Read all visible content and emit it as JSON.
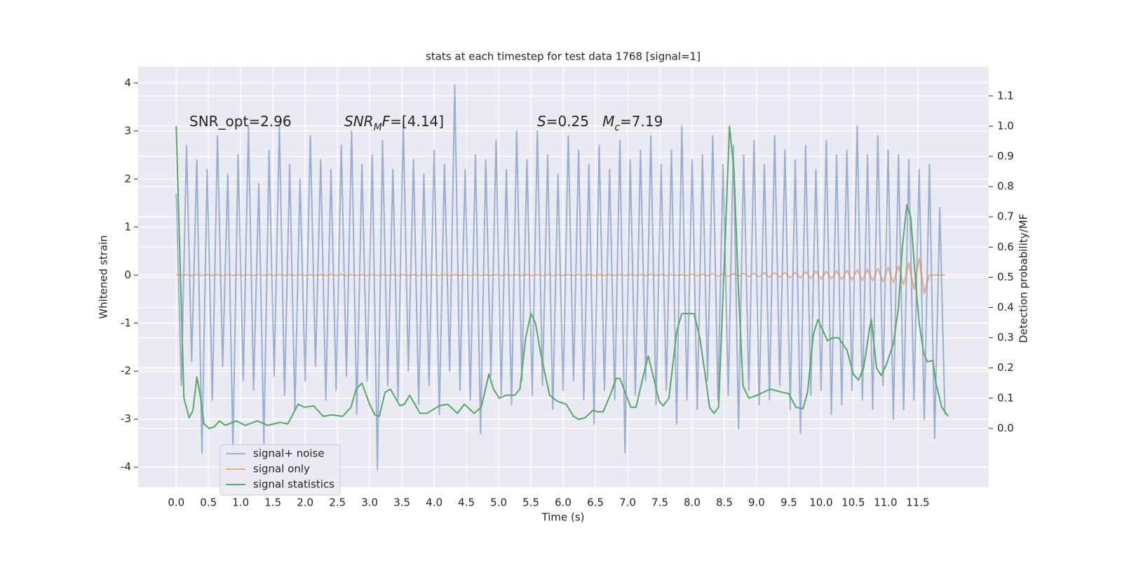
{
  "chart_data": {
    "type": "line",
    "title": "stats at each timestep for test data 1768 [signal=1]",
    "x_label": "Time (s)",
    "y_label": "Whitened strain",
    "y2_label": "Detection probability/MF",
    "background": "#eaeaf2",
    "grid": true,
    "grid_color": "#ffffff",
    "legend": "lower left",
    "xlim": [
      -0.59,
      12.6
    ],
    "ylim": [
      -4.42,
      4.34
    ],
    "y2lim": [
      -0.195,
      1.197
    ],
    "xticks": [
      {
        "value": 0,
        "label": "0.0"
      },
      0.5,
      {
        "value": 1,
        "label": "1.0"
      },
      1.5,
      {
        "value": 2,
        "label": "2.0"
      },
      2.5,
      {
        "value": 3,
        "label": "3.0"
      },
      3.5,
      {
        "value": 4,
        "label": "4.0"
      },
      4.5,
      {
        "value": 5,
        "label": "5.0"
      },
      5.5,
      {
        "value": 6,
        "label": "6.0"
      },
      6.5,
      {
        "value": 7,
        "label": "7.0"
      },
      7.5,
      {
        "value": 8,
        "label": "8.0"
      },
      8.5,
      {
        "value": 9,
        "label": "9.0"
      },
      9.5,
      {
        "value": 10,
        "label": "10.0"
      },
      10.5,
      {
        "value": 11,
        "label": "11.0"
      },
      11.5
    ],
    "yticks": [
      -4,
      -3,
      -2,
      -1,
      0,
      1,
      2,
      3,
      4
    ],
    "y2ticks": [
      {
        "value": 0,
        "label": "0.0"
      },
      0.1,
      0.2,
      0.3,
      0.4,
      0.5,
      0.6,
      0.7,
      0.8,
      0.9,
      {
        "value": 1,
        "label": "1.0"
      },
      1.1
    ],
    "annotations": [
      [
        {
          "text": "SNR_opt=2.96"
        }
      ],
      [
        {
          "text": "SNR",
          "italic": true
        },
        {
          "text": "M",
          "italic": true,
          "sub": true
        },
        {
          "text": "F",
          "italic": true
        },
        {
          "text": "=[4.14]"
        }
      ],
      [
        {
          "text": "S",
          "italic": true
        },
        {
          "text": "=0.25   "
        },
        {
          "text": "M",
          "italic": true
        },
        {
          "text": "c",
          "italic": true,
          "sub": true
        },
        {
          "text": "=7.19"
        }
      ]
    ],
    "series": [
      {
        "name": "signal+ noise",
        "color": "#4c72b0",
        "opacity": 0.5,
        "x": [
          0,
          0.08,
          0.16,
          0.24,
          0.32,
          0.4,
          0.48,
          0.56,
          0.64,
          0.72,
          0.8,
          0.88,
          0.96,
          1.04,
          1.12,
          1.2,
          1.28,
          1.36,
          1.44,
          1.52,
          1.6,
          1.68,
          1.76,
          1.84,
          1.92,
          2,
          2.08,
          2.16,
          2.24,
          2.32,
          2.4,
          2.48,
          2.56,
          2.64,
          2.72,
          2.8,
          2.88,
          2.96,
          3.04,
          3.12,
          3.2,
          3.28,
          3.36,
          3.44,
          3.52,
          3.6,
          3.68,
          3.76,
          3.84,
          3.92,
          4,
          4.08,
          4.16,
          4.24,
          4.32,
          4.4,
          4.48,
          4.56,
          4.64,
          4.72,
          4.8,
          4.88,
          4.96,
          5.04,
          5.12,
          5.2,
          5.28,
          5.36,
          5.44,
          5.52,
          5.6,
          5.68,
          5.76,
          5.84,
          5.92,
          6,
          6.08,
          6.16,
          6.24,
          6.32,
          6.4,
          6.48,
          6.56,
          6.64,
          6.72,
          6.8,
          6.88,
          6.96,
          7.04,
          7.12,
          7.2,
          7.28,
          7.36,
          7.44,
          7.52,
          7.6,
          7.68,
          7.76,
          7.84,
          7.92,
          8,
          8.08,
          8.16,
          8.24,
          8.32,
          8.4,
          8.48,
          8.56,
          8.64,
          8.72,
          8.8,
          8.88,
          8.96,
          9.04,
          9.12,
          9.2,
          9.28,
          9.36,
          9.44,
          9.52,
          9.6,
          9.68,
          9.76,
          9.84,
          9.92,
          10,
          10.08,
          10.16,
          10.24,
          10.32,
          10.4,
          10.48,
          10.56,
          10.64,
          10.72,
          10.8,
          10.88,
          10.96,
          11.04,
          11.12,
          11.2,
          11.28,
          11.36,
          11.44,
          11.52,
          11.6,
          11.68,
          11.76,
          11.84,
          11.92
        ],
        "values": [
          1.7,
          -2.3,
          2.7,
          -1.8,
          2.4,
          -3.7,
          2.2,
          -2.6,
          2.9,
          -1.9,
          2.1,
          -3.6,
          2.5,
          -2.2,
          3.1,
          -2.4,
          1.9,
          -3.5,
          2.6,
          -2.1,
          3.1,
          -2.5,
          2.3,
          -2.8,
          2.0,
          -2.2,
          2.9,
          -1.9,
          2.4,
          -2.6,
          2.2,
          -2.4,
          2.7,
          -2.1,
          3.0,
          -2.9,
          2.3,
          -2.2,
          2.5,
          -4.05,
          2.8,
          -2.3,
          2.2,
          -2.6,
          3.2,
          -2.0,
          2.4,
          -2.7,
          2.1,
          -2.3,
          2.6,
          -2.9,
          2.3,
          -2.0,
          3.95,
          -2.4,
          2.2,
          -2.6,
          2.5,
          -3.3,
          2.4,
          -2.1,
          2.8,
          -2.5,
          2.2,
          -2.7,
          3.0,
          -2.2,
          2.4,
          -2.5,
          3.0,
          -2.3,
          2.5,
          -2.8,
          2.1,
          -2.4,
          2.9,
          -2.2,
          2.6,
          -2.6,
          2.3,
          -3.1,
          2.7,
          -2.4,
          2.2,
          -2.6,
          2.8,
          -3.7,
          2.4,
          -2.5,
          2.6,
          -2.2,
          2.9,
          -2.7,
          2.3,
          -2.4,
          2.6,
          -3.1,
          3.1,
          -2.6,
          2.4,
          -2.8,
          2.5,
          -2.2,
          2.9,
          -2.6,
          2.3,
          -2.5,
          2.7,
          -3.2,
          2.5,
          -2.4,
          2.8,
          -2.7,
          2.3,
          -2.6,
          2.9,
          -2.3,
          2.6,
          -2.8,
          2.4,
          -3.3,
          2.7,
          -2.5,
          2.2,
          -2.4,
          2.8,
          -2.9,
          2.5,
          -2.7,
          2.6,
          -2.4,
          3.1,
          -2.6,
          2.5,
          -2.8,
          2.9,
          -2.3,
          2.6,
          -3.0,
          2.5,
          -2.8,
          2.4,
          -2.6,
          2.2,
          -3.0,
          2.3,
          -3.4,
          1.4,
          -2.9
        ]
      },
      {
        "name": "signal only",
        "color": "#dd8452",
        "opacity": 0.6,
        "x": [
          0,
          0.08,
          0.16,
          0.24,
          0.32,
          0.4,
          0.48,
          0.56,
          0.64,
          0.72,
          0.8,
          0.88,
          0.96,
          1.04,
          1.12,
          1.2,
          1.28,
          1.36,
          1.44,
          1.52,
          1.6,
          1.68,
          1.76,
          1.84,
          1.92,
          2,
          2.08,
          2.16,
          2.24,
          2.32,
          2.4,
          2.48,
          2.56,
          2.64,
          2.72,
          2.8,
          2.88,
          2.96,
          3.04,
          3.12,
          3.2,
          3.28,
          3.36,
          3.44,
          3.52,
          3.6,
          3.68,
          3.76,
          3.84,
          3.92,
          4,
          4.08,
          4.16,
          4.24,
          4.32,
          4.4,
          4.48,
          4.56,
          4.64,
          4.72,
          4.8,
          4.88,
          4.96,
          5.04,
          5.12,
          5.2,
          5.28,
          5.36,
          5.44,
          5.52,
          5.6,
          5.68,
          5.76,
          5.84,
          5.92,
          6,
          6.08,
          6.16,
          6.24,
          6.32,
          6.4,
          6.48,
          6.56,
          6.64,
          6.72,
          6.8,
          6.88,
          6.96,
          7.04,
          7.12,
          7.2,
          7.28,
          7.36,
          7.44,
          7.52,
          7.6,
          7.68,
          7.76,
          7.84,
          7.92,
          8,
          8.08,
          8.16,
          8.24,
          8.32,
          8.4,
          8.48,
          8.56,
          8.64,
          8.72,
          8.8,
          8.88,
          8.96,
          9.04,
          9.12,
          9.2,
          9.28,
          9.36,
          9.44,
          9.52,
          9.6,
          9.68,
          9.76,
          9.84,
          9.92,
          10,
          10.08,
          10.16,
          10.24,
          10.32,
          10.4,
          10.48,
          10.56,
          10.64,
          10.72,
          10.8,
          10.88,
          10.96,
          11.04,
          11.12,
          11.2,
          11.28,
          11.36,
          11.44,
          11.52,
          11.6,
          11.68,
          11.76,
          11.84,
          11.92
        ],
        "values": [
          0.01,
          -0.01,
          0.01,
          -0.01,
          0.01,
          -0.01,
          0.01,
          -0.01,
          0.01,
          -0.01,
          0.01,
          -0.01,
          0.01,
          -0.01,
          0.01,
          -0.01,
          0.01,
          -0.01,
          0.01,
          -0.01,
          0.01,
          -0.01,
          0.01,
          -0.01,
          0.01,
          -0.01,
          0.01,
          -0.01,
          0.01,
          -0.01,
          0.01,
          -0.01,
          0.01,
          -0.01,
          0.01,
          -0.01,
          0.01,
          -0.01,
          0.01,
          -0.01,
          0.01,
          -0.01,
          0.01,
          -0.01,
          0.01,
          -0.01,
          0.01,
          -0.01,
          0.01,
          -0.01,
          0.01,
          -0.01,
          0.01,
          -0.01,
          0.01,
          -0.01,
          0.01,
          -0.01,
          0.01,
          -0.01,
          0.01,
          -0.01,
          0.01,
          -0.01,
          0.01,
          -0.01,
          0.01,
          -0.01,
          0.01,
          -0.01,
          0.01,
          -0.01,
          0.01,
          -0.01,
          0.01,
          -0.01,
          0.01,
          -0.01,
          0.01,
          -0.01,
          0.01,
          -0.01,
          0.01,
          -0.01,
          0.01,
          -0.01,
          0.01,
          -0.01,
          0.01,
          -0.01,
          0.01,
          -0.01,
          0.01,
          -0.01,
          0.01,
          -0.01,
          0.01,
          -0.01,
          0.01,
          -0.01,
          0.02,
          -0.02,
          0.02,
          -0.02,
          0.03,
          -0.03,
          0.03,
          -0.03,
          0.03,
          -0.03,
          0.04,
          -0.04,
          0.04,
          -0.04,
          0.05,
          -0.05,
          0.05,
          -0.05,
          0.06,
          -0.06,
          0.06,
          -0.06,
          0.07,
          -0.07,
          0.08,
          -0.08,
          0.08,
          -0.08,
          0.09,
          -0.09,
          0.1,
          -0.1,
          0.11,
          -0.11,
          0.12,
          -0.12,
          0.14,
          -0.14,
          0.16,
          -0.16,
          0.19,
          -0.2,
          0.25,
          -0.3,
          0.35,
          -0.38,
          0,
          0,
          0,
          0
        ]
      },
      {
        "name": "signal statistics",
        "color": "#55a868",
        "opacity": 1,
        "axis": "y2",
        "x": [
          0,
          0.12,
          0.2,
          0.26,
          0.32,
          0.38,
          0.43,
          0.51,
          0.59,
          0.67,
          0.76,
          0.93,
          1.07,
          1.26,
          1.42,
          1.61,
          1.73,
          1.89,
          1.99,
          2.13,
          2.28,
          2.42,
          2.58,
          2.71,
          2.79,
          2.88,
          3.0,
          3.08,
          3.15,
          3.24,
          3.32,
          3.47,
          3.54,
          3.62,
          3.78,
          3.89,
          4.08,
          4.21,
          4.36,
          4.47,
          4.62,
          4.73,
          4.85,
          4.92,
          5.01,
          5.12,
          5.25,
          5.33,
          5.42,
          5.5,
          5.57,
          5.65,
          5.79,
          5.91,
          6.05,
          6.16,
          6.24,
          6.34,
          6.46,
          6.53,
          6.62,
          6.73,
          6.82,
          6.88,
          6.96,
          7.05,
          7.13,
          7.25,
          7.32,
          7.4,
          7.49,
          7.55,
          7.64,
          7.76,
          7.84,
          7.96,
          8.03,
          8.12,
          8.2,
          8.27,
          8.34,
          8.41,
          8.5,
          8.58,
          8.65,
          8.72,
          8.79,
          8.88,
          9.01,
          9.21,
          9.39,
          9.5,
          9.61,
          9.72,
          9.79,
          9.88,
          9.95,
          10.1,
          10.18,
          10.27,
          10.4,
          10.5,
          10.58,
          10.66,
          10.75,
          10.78,
          10.86,
          10.93,
          11.01,
          11.12,
          11.2,
          11.26,
          11.33,
          11.39,
          11.46,
          11.52,
          11.59,
          11.65,
          11.73,
          11.78,
          11.87,
          11.97
        ],
        "values": [
          1.0,
          0.1,
          0.035,
          0.06,
          0.17,
          0.1,
          0.015,
          0.0,
          0.005,
          0.025,
          0.01,
          0.025,
          0.01,
          0.025,
          0.01,
          0.02,
          0.015,
          0.08,
          0.07,
          0.075,
          0.04,
          0.045,
          0.04,
          0.07,
          0.13,
          0.15,
          0.08,
          0.045,
          0.04,
          0.12,
          0.13,
          0.075,
          0.08,
          0.11,
          0.05,
          0.05,
          0.075,
          0.08,
          0.05,
          0.08,
          0.05,
          0.07,
          0.18,
          0.13,
          0.1,
          0.11,
          0.11,
          0.13,
          0.3,
          0.38,
          0.35,
          0.25,
          0.11,
          0.09,
          0.08,
          0.04,
          0.03,
          0.035,
          0.06,
          0.055,
          0.055,
          0.11,
          0.165,
          0.165,
          0.12,
          0.07,
          0.07,
          0.18,
          0.24,
          0.17,
          0.09,
          0.075,
          0.1,
          0.32,
          0.38,
          0.38,
          0.38,
          0.3,
          0.18,
          0.07,
          0.05,
          0.07,
          0.55,
          1.0,
          0.85,
          0.45,
          0.14,
          0.1,
          0.11,
          0.13,
          0.12,
          0.115,
          0.07,
          0.065,
          0.12,
          0.31,
          0.36,
          0.29,
          0.3,
          0.3,
          0.26,
          0.18,
          0.16,
          0.2,
          0.33,
          0.36,
          0.2,
          0.175,
          0.21,
          0.28,
          0.4,
          0.6,
          0.74,
          0.7,
          0.5,
          0.35,
          0.25,
          0.22,
          0.225,
          0.15,
          0.07,
          0.04
        ]
      }
    ]
  }
}
